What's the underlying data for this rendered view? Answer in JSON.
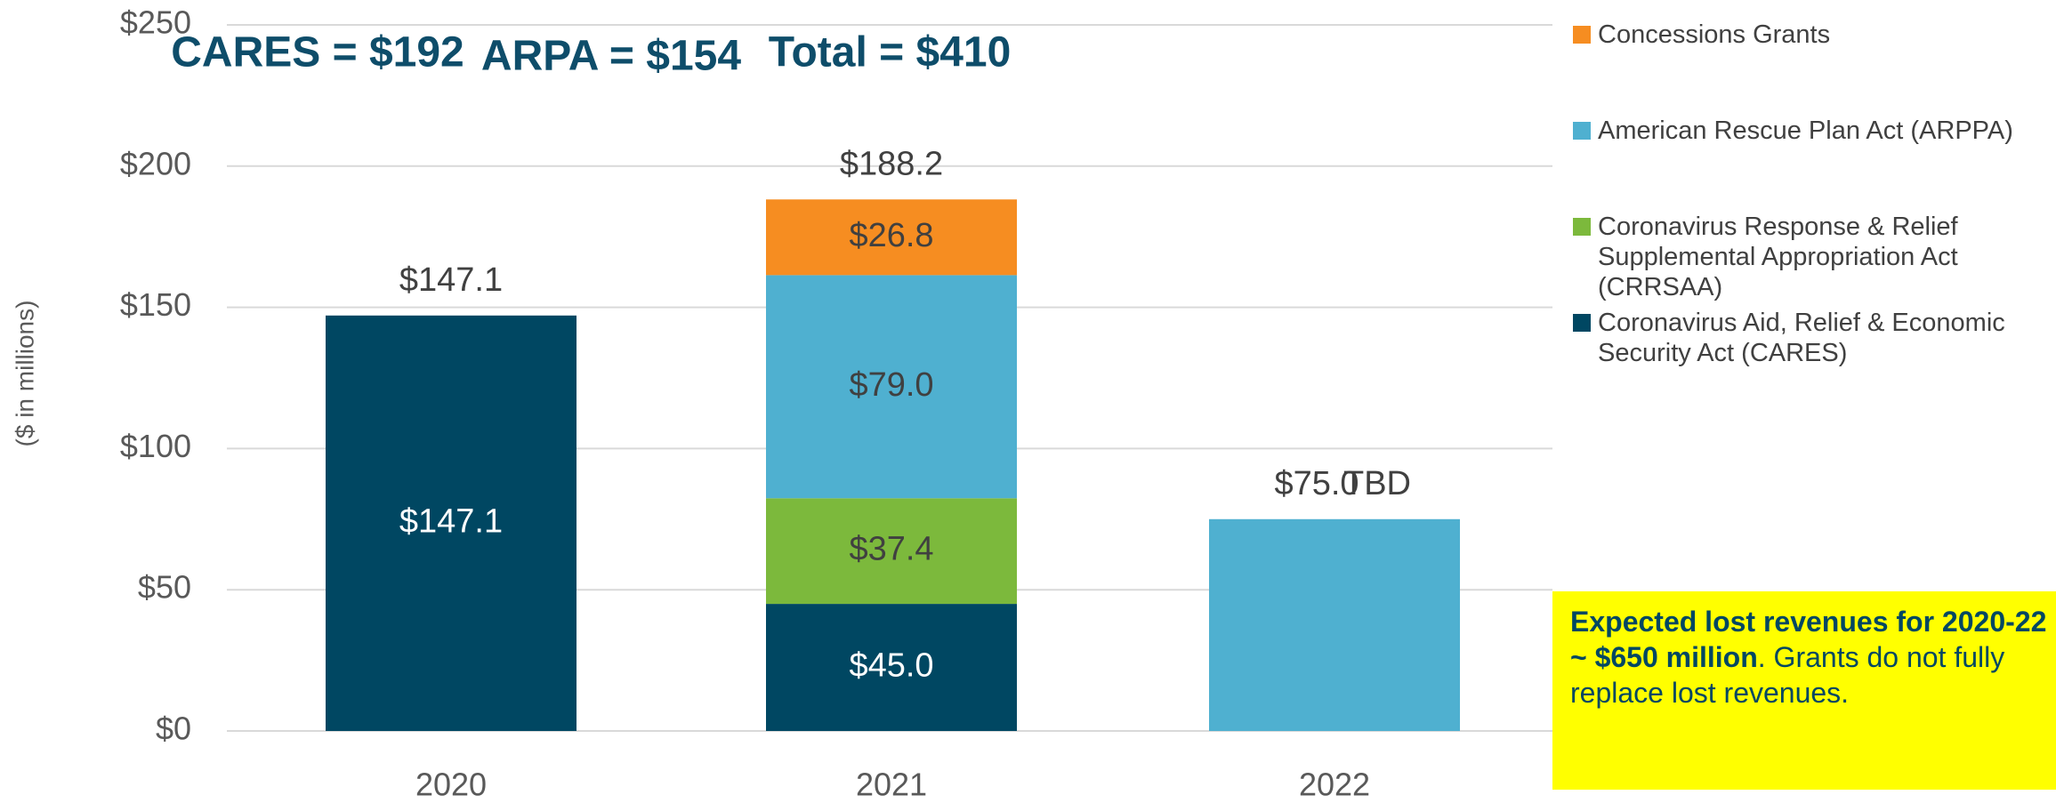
{
  "chart_data": {
    "type": "stacked_bar",
    "y_axis_label": "($ in millions)",
    "categories": [
      "2020",
      "2021",
      "2022"
    ],
    "series": [
      {
        "name": "Coronavirus Aid, Relief & Economic Security Act (CARES)",
        "color": "#004762",
        "label_color": "#ffffff",
        "values": [
          147.1,
          45.0,
          null
        ],
        "value_labels": [
          "$147.1",
          "$45.0",
          null
        ]
      },
      {
        "name": "Coronavirus Response & Relief Supplemental Appropriation Act (CRRSAA)",
        "color": "#7cb93c",
        "label_color": "#404040",
        "values": [
          null,
          37.4,
          null
        ],
        "value_labels": [
          null,
          "$37.4",
          null
        ]
      },
      {
        "name": "American Rescue Plan Act (ARPPA)",
        "color": "#4fb0d0",
        "label_color": "#404040",
        "values": [
          null,
          79.0,
          75.0
        ],
        "value_labels": [
          null,
          "$79.0",
          null
        ]
      },
      {
        "name": "Concessions Grants",
        "color": "#f68d21",
        "label_color": "#404040",
        "values": [
          null,
          26.8,
          null
        ],
        "value_labels": [
          null,
          "$26.8",
          null
        ]
      }
    ],
    "totals": [
      147.1,
      188.2,
      75.0
    ],
    "total_labels": [
      "$147.1",
      "$188.2",
      "$75.0"
    ],
    "total_note": "TBD",
    "headers": [
      "CARES = $192",
      "ARPA = $154",
      "Total = $410"
    ],
    "note_bold": "Expected lost revenues for 2020-22 ~ $650 million",
    "note_text": ".  Grants do not fully replace lost revenues.",
    "ylim": [
      0,
      250
    ],
    "yticks": [
      {
        "value": 0,
        "label": "$0"
      },
      {
        "value": 50,
        "label": "$50"
      },
      {
        "value": 100,
        "label": "$100"
      },
      {
        "value": 150,
        "label": "$150"
      },
      {
        "value": 200,
        "label": "$200"
      },
      {
        "value": 250,
        "label": "$250"
      }
    ],
    "grid": true,
    "legend": "right"
  }
}
